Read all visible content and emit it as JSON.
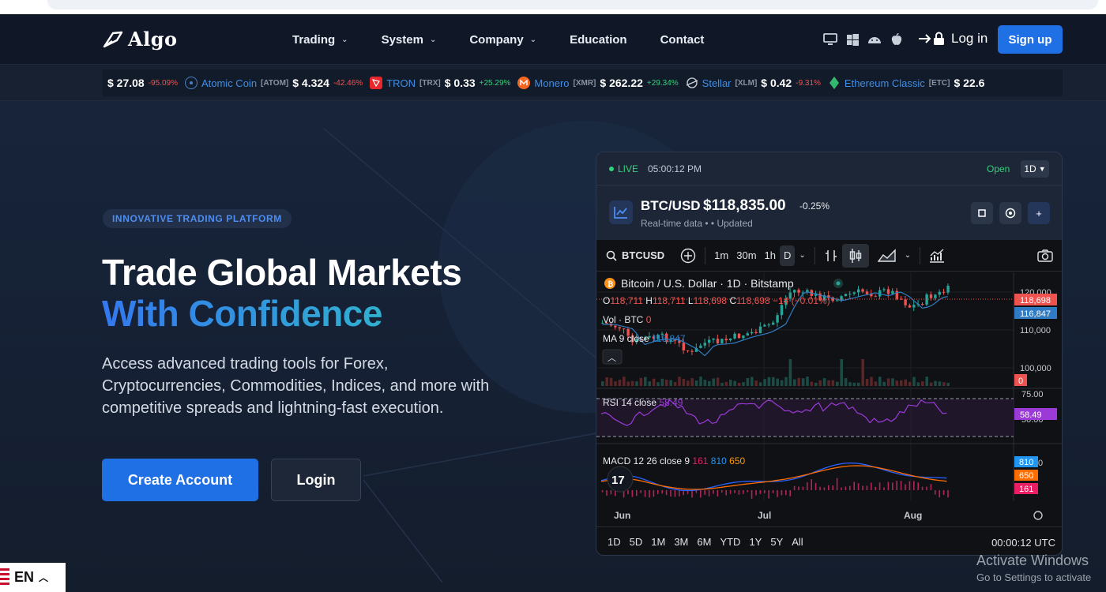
{
  "nav": {
    "logo_text": "Algo",
    "items": [
      {
        "label": "Trading",
        "dropdown": true
      },
      {
        "label": "System",
        "dropdown": true
      },
      {
        "label": "Company",
        "dropdown": true
      },
      {
        "label": "Education",
        "dropdown": false
      },
      {
        "label": "Contact",
        "dropdown": false
      }
    ],
    "platform_icons": [
      "desktop-icon",
      "windows-icon",
      "android-icon",
      "apple-icon"
    ],
    "login_label": "Log in",
    "signup_label": "Sign up"
  },
  "ticker": [
    {
      "price": "$ 27.08",
      "change": "-95.09%",
      "dir": "down"
    },
    {
      "name": "Atomic Coin",
      "symbol": "[ATOM]",
      "price": "$ 4.324",
      "change": "-42.46%",
      "dir": "down",
      "icon": "atom-icon",
      "color": "#4a7fc8"
    },
    {
      "name": "TRON",
      "symbol": "[TRX]",
      "price": "$ 0.33",
      "change": "+25.29%",
      "dir": "up",
      "icon": "tron-icon",
      "color": "#e8282d"
    },
    {
      "name": "Monero",
      "symbol": "[XMR]",
      "price": "$ 262.22",
      "change": "+29.34%",
      "dir": "up",
      "icon": "monero-icon",
      "color": "#f26822"
    },
    {
      "name": "Stellar",
      "symbol": "[XLM]",
      "price": "$ 0.42",
      "change": "-9.31%",
      "dir": "down",
      "icon": "stellar-icon",
      "color": "#cfd5de"
    },
    {
      "name": "Ethereum Classic",
      "symbol": "[ETC]",
      "price": "$ 22.6",
      "change": "",
      "dir": "up",
      "icon": "etc-icon",
      "color": "#33b870"
    }
  ],
  "hero": {
    "badge": "INNOVATIVE TRADING PLATFORM",
    "title_line1": "Trade Global Markets",
    "title_line2": "With Confidence",
    "lead": "Access advanced trading tools for Forex, Cryptocurrencies, Commodities, Indices, and more with competitive spreads and lightning-fast execution.",
    "cta_primary": "Create Account",
    "cta_secondary": "Login"
  },
  "widget": {
    "live_label": "LIVE",
    "time": "05:00:12 PM",
    "market_status": "Open",
    "interval": "1D",
    "pair": "BTC/USD",
    "price": "$118,835.00",
    "change": "-0.25%",
    "realtime_text": "Real-time data •  • Updated",
    "toolbar": {
      "symbol": "BTCUSD",
      "intervals": [
        "1m",
        "30m",
        "1h",
        "D"
      ]
    },
    "legend": {
      "title": "Bitcoin / U.S. Dollar · 1D · Bitstamp",
      "ohlc_o": "118,711",
      "ohlc_h": "118,711",
      "ohlc_l": "118,698",
      "ohlc_c": "118,698",
      "ohlc_chg": "−14 (−0.01%)",
      "vol_label": "Vol · BTC",
      "vol_value": "0",
      "ma_label": "MA 9 close",
      "ma_value": "116,847",
      "rsi_label": "RSI 14 close",
      "rsi_value": "58.49",
      "macd_label": "MACD 12 26 close 9",
      "macd_v1": "161",
      "macd_v2": "810",
      "macd_v3": "650"
    },
    "price_axis": [
      "120,000",
      "110,000",
      "100,000"
    ],
    "price_tags": {
      "last": "118,698",
      "ma": "116,847",
      "vol": "0"
    },
    "rsi_axis": [
      "75.00",
      "50.00"
    ],
    "rsi_tag": "58.49",
    "macd_axis_top": "0",
    "macd_tags": [
      "810",
      "650",
      "161"
    ],
    "time_axis": [
      "Jun",
      "Jul",
      "Aug"
    ],
    "ranges": [
      "1D",
      "5D",
      "1M",
      "3M",
      "6M",
      "YTD",
      "1Y",
      "5Y",
      "All"
    ],
    "clock": "00:00:12 UTC"
  },
  "os_watermark": {
    "line1": "Activate Windows",
    "line2": "Go to Settings to activate"
  },
  "language": "EN",
  "colors": {
    "accent": "#1f6fe5",
    "up": "#26a69a",
    "down": "#ef5350"
  }
}
